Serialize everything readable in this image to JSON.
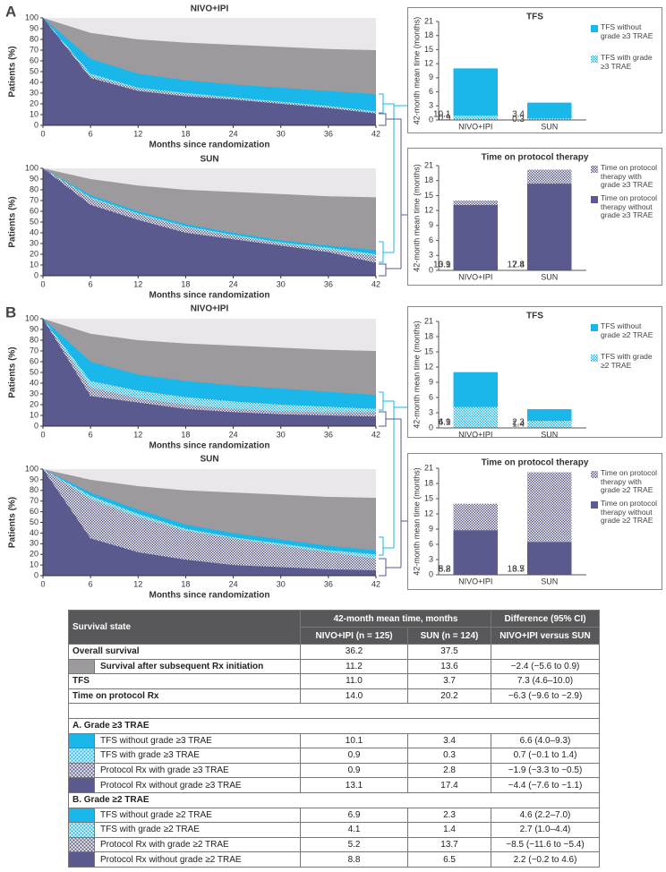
{
  "panel_labels": [
    "A",
    "B"
  ],
  "chart_data": [
    {
      "type": "area",
      "title": "NIVO+IPI",
      "xlabel": "Months since randomization",
      "ylabel": "Patients (%)",
      "background": "#e9e7ea",
      "x": [
        0,
        6,
        12,
        18,
        24,
        30,
        36,
        42
      ],
      "xlim": [
        0,
        42
      ],
      "xticks": [
        0,
        6,
        12,
        18,
        24,
        30,
        36,
        42
      ],
      "ylim": [
        0,
        100
      ],
      "yticks": [
        0,
        10,
        20,
        30,
        40,
        50,
        60,
        70,
        80,
        90,
        100
      ],
      "series": [
        {
          "color": "#9c9a9c",
          "values": [
            100,
            86,
            80,
            77,
            75,
            73,
            71,
            70
          ]
        },
        {
          "color": "#1ab7ea",
          "values": [
            100,
            62,
            48,
            42,
            38,
            35,
            32,
            29
          ]
        },
        {
          "color": "#1ab7ea",
          "pattern": "checker",
          "values": [
            100,
            48,
            35,
            30,
            26,
            22,
            18,
            13
          ]
        },
        {
          "color": "#5b5a8e",
          "pattern": "checker",
          "values": [
            100,
            46,
            34,
            29,
            25,
            21,
            17,
            12
          ]
        },
        {
          "color": "#5b5a8e",
          "values": [
            100,
            44,
            32,
            27,
            24,
            20,
            16,
            11
          ]
        }
      ]
    },
    {
      "type": "area",
      "title": "SUN",
      "xlabel": "Months since randomization",
      "ylabel": "Patients (%)",
      "background": "#e9e7ea",
      "x": [
        0,
        6,
        12,
        18,
        24,
        30,
        36,
        42
      ],
      "xlim": [
        0,
        42
      ],
      "xticks": [
        0,
        6,
        12,
        18,
        24,
        30,
        36,
        42
      ],
      "ylim": [
        0,
        100
      ],
      "yticks": [
        0,
        10,
        20,
        30,
        40,
        50,
        60,
        70,
        80,
        90,
        100
      ],
      "series": [
        {
          "color": "#9c9a9c",
          "values": [
            100,
            90,
            84,
            80,
            78,
            76,
            74,
            73
          ]
        },
        {
          "color": "#1ab7ea",
          "values": [
            100,
            75,
            60,
            48,
            40,
            33,
            28,
            24
          ]
        },
        {
          "color": "#1ab7ea",
          "pattern": "checker",
          "values": [
            100,
            73,
            58,
            46,
            38,
            31,
            26,
            20
          ]
        },
        {
          "color": "#5b5a8e",
          "pattern": "checker",
          "values": [
            100,
            72,
            57,
            45,
            37,
            30,
            24,
            18
          ]
        },
        {
          "color": "#5b5a8e",
          "values": [
            100,
            66,
            52,
            40,
            34,
            28,
            22,
            12
          ]
        }
      ]
    },
    {
      "type": "area",
      "title": "NIVO+IPI",
      "xlabel": "Months since randomization",
      "ylabel": "Patients (%)",
      "background": "#e9e7ea",
      "x": [
        0,
        6,
        12,
        18,
        24,
        30,
        36,
        42
      ],
      "xlim": [
        0,
        42
      ],
      "xticks": [
        0,
        6,
        12,
        18,
        24,
        30,
        36,
        42
      ],
      "ylim": [
        0,
        100
      ],
      "yticks": [
        0,
        10,
        20,
        30,
        40,
        50,
        60,
        70,
        80,
        90,
        100
      ],
      "series": [
        {
          "color": "#9c9a9c",
          "values": [
            100,
            86,
            80,
            77,
            75,
            73,
            71,
            70
          ]
        },
        {
          "color": "#1ab7ea",
          "values": [
            100,
            60,
            48,
            42,
            38,
            35,
            32,
            29
          ]
        },
        {
          "color": "#1ab7ea",
          "pattern": "checker",
          "values": [
            100,
            42,
            33,
            27,
            23,
            20,
            18,
            16
          ]
        },
        {
          "color": "#5b5a8e",
          "pattern": "checker",
          "values": [
            100,
            36,
            26,
            20,
            16,
            14,
            13,
            13
          ]
        },
        {
          "color": "#5b5a8e",
          "values": [
            100,
            28,
            22,
            16,
            13,
            11,
            10,
            9
          ]
        }
      ]
    },
    {
      "type": "area",
      "title": "SUN",
      "xlabel": "Months since randomization",
      "ylabel": "Patients (%)",
      "background": "#e9e7ea",
      "x": [
        0,
        6,
        12,
        18,
        24,
        30,
        36,
        42
      ],
      "xlim": [
        0,
        42
      ],
      "xticks": [
        0,
        6,
        12,
        18,
        24,
        30,
        36,
        42
      ],
      "ylim": [
        0,
        100
      ],
      "yticks": [
        0,
        10,
        20,
        30,
        40,
        50,
        60,
        70,
        80,
        90,
        100
      ],
      "series": [
        {
          "color": "#9c9a9c",
          "values": [
            100,
            90,
            84,
            80,
            78,
            76,
            74,
            73
          ]
        },
        {
          "color": "#1ab7ea",
          "values": [
            100,
            78,
            62,
            48,
            40,
            34,
            28,
            24
          ]
        },
        {
          "color": "#1ab7ea",
          "pattern": "checker",
          "values": [
            100,
            75,
            58,
            44,
            36,
            30,
            24,
            20
          ]
        },
        {
          "color": "#5b5a8e",
          "pattern": "checker",
          "values": [
            100,
            72,
            55,
            42,
            35,
            28,
            22,
            16
          ]
        },
        {
          "color": "#5b5a8e",
          "values": [
            100,
            35,
            22,
            15,
            10,
            8,
            6,
            5
          ]
        }
      ]
    },
    {
      "type": "stacked_bar",
      "title": "TFS",
      "ylabel": "42-month mean time (months)",
      "categories": [
        "NIVO+IPI",
        "SUN"
      ],
      "ylim": [
        0,
        21
      ],
      "yticks": [
        0,
        3,
        6,
        9,
        12,
        15,
        18,
        21
      ],
      "series": [
        {
          "name": "TFS with grade ≥3 TRAE",
          "color": "#1ab7ea",
          "pattern": "checker",
          "values": [
            0.9,
            0.3
          ]
        },
        {
          "name": "TFS without grade ≥3 TRAE",
          "color": "#1ab7ea",
          "values": [
            10.1,
            3.4
          ]
        }
      ]
    },
    {
      "type": "stacked_bar",
      "title": "Time on protocol therapy",
      "ylabel": "42-month mean time (months)",
      "categories": [
        "NIVO+IPI",
        "SUN"
      ],
      "ylim": [
        0,
        21
      ],
      "yticks": [
        0,
        3,
        6,
        9,
        12,
        15,
        18,
        21
      ],
      "series": [
        {
          "name": "Time on protocol therapy without grade ≥3 TRAE",
          "color": "#5b5a8e",
          "values": [
            13.1,
            17.4
          ]
        },
        {
          "name": "Time on protocol therapy with grade ≥3 TRAE",
          "color": "#5b5a8e",
          "pattern": "checker",
          "values": [
            0.9,
            2.8
          ]
        }
      ]
    },
    {
      "type": "stacked_bar",
      "title": "TFS",
      "ylabel": "42-month mean time (months)",
      "categories": [
        "NIVO+IPI",
        "SUN"
      ],
      "ylim": [
        0,
        21
      ],
      "yticks": [
        0,
        3,
        6,
        9,
        12,
        15,
        18,
        21
      ],
      "series": [
        {
          "name": "TFS with grade ≥2 TRAE",
          "color": "#1ab7ea",
          "pattern": "checker",
          "values": [
            4.1,
            1.4
          ]
        },
        {
          "name": "TFS without grade ≥2 TRAE",
          "color": "#1ab7ea",
          "values": [
            6.9,
            2.3
          ]
        }
      ]
    },
    {
      "type": "stacked_bar",
      "title": "Time on protocol therapy",
      "ylabel": "42-month mean time (months)",
      "categories": [
        "NIVO+IPI",
        "SUN"
      ],
      "ylim": [
        0,
        21
      ],
      "yticks": [
        0,
        3,
        6,
        9,
        12,
        15,
        18,
        21
      ],
      "series": [
        {
          "name": "Time on protocol therapy without grade ≥2 TRAE",
          "color": "#5b5a8e",
          "values": [
            8.8,
            6.5
          ]
        },
        {
          "name": "Time on protocol therapy with grade ≥2 TRAE",
          "color": "#5b5a8e",
          "pattern": "checker",
          "values": [
            5.2,
            13.7
          ]
        }
      ]
    }
  ],
  "table": {
    "header": {
      "state": "Survival state",
      "mean": "42-month mean time, months",
      "diff": "Difference (95% CI)",
      "nivo": "NIVO+IPI (n = 125)",
      "sun": "SUN (n = 124)",
      "diff_sub": "NIVO+IPI versus SUN"
    },
    "rows": [
      {
        "label": "Overall survival",
        "values": [
          "36.2",
          "37.5"
        ],
        "bold": true
      },
      {
        "label": "Survival after subsequent Rx initiation",
        "values": [
          "11.2",
          "13.6",
          "−2.4 (−5.6 to 0.9)"
        ],
        "bold": true,
        "swatch": {
          "color": "#9c9a9c"
        }
      },
      {
        "label": "TFS",
        "values": [
          "11.0",
          "3.7",
          "7.3 (4.6–10.0)"
        ],
        "bold": true
      },
      {
        "label": "Time on protocol Rx",
        "values": [
          "14.0",
          "20.2",
          "−6.3 (−9.6 to −2.9)"
        ],
        "bold": true
      }
    ],
    "sections": [
      {
        "title": "A. Grade ≥3 TRAE",
        "rows": [
          {
            "label": "TFS without grade ≥3 TRAE",
            "values": [
              "10.1",
              "3.4",
              "6.6 (4.0–9.3)"
            ],
            "swatch": {
              "color": "#1ab7ea"
            }
          },
          {
            "label": "TFS with grade ≥3 TRAE",
            "values": [
              "0.9",
              "0.3",
              "0.7 (−0.1 to 1.4)"
            ],
            "swatch": {
              "color": "#1ab7ea",
              "pattern": "checker"
            }
          },
          {
            "label": "Protocol Rx with grade ≥3 TRAE",
            "values": [
              "0.9",
              "2.8",
              "−1.9 (−3.3 to −0.5)"
            ],
            "swatch": {
              "color": "#5b5a8e",
              "pattern": "checker"
            }
          },
          {
            "label": "Protocol Rx without grade ≥3 TRAE",
            "values": [
              "13.1",
              "17.4",
              "−4.4 (−7.6 to −1.1)"
            ],
            "swatch": {
              "color": "#5b5a8e"
            }
          }
        ]
      },
      {
        "title": "B. Grade ≥2 TRAE",
        "rows": [
          {
            "label": "TFS without grade ≥2 TRAE",
            "values": [
              "6.9",
              "2.3",
              "4.6 (2.2–7.0)"
            ],
            "swatch": {
              "color": "#1ab7ea"
            }
          },
          {
            "label": "TFS with grade ≥2 TRAE",
            "values": [
              "4.1",
              "1.4",
              "2.7 (1.0–4.4)"
            ],
            "swatch": {
              "color": "#1ab7ea",
              "pattern": "checker"
            }
          },
          {
            "label": "Protocol Rx with grade ≥2 TRAE",
            "values": [
              "5.2",
              "13.7",
              "−8.5 (−11.6 to −5.4)"
            ],
            "swatch": {
              "color": "#5b5a8e",
              "pattern": "checker"
            }
          },
          {
            "label": "Protocol Rx without grade ≥2 TRAE",
            "values": [
              "8.8",
              "6.5",
              "2.2 (−0.2 to 4.6)"
            ],
            "swatch": {
              "color": "#5b5a8e"
            }
          }
        ]
      }
    ]
  }
}
